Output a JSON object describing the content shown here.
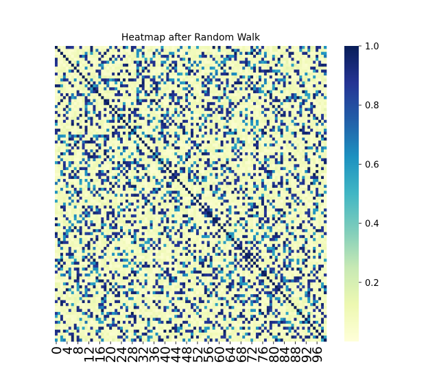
{
  "chart_data": {
    "type": "heatmap",
    "title": "Heatmap after Random Walk",
    "xlabel": "",
    "ylabel": "",
    "size": 100,
    "x_tick_labels": [
      "0",
      "4",
      "8",
      "12",
      "16",
      "20",
      "24",
      "28",
      "32",
      "36",
      "40",
      "44",
      "48",
      "52",
      "56",
      "60",
      "64",
      "68",
      "72",
      "76",
      "80",
      "84",
      "88",
      "92",
      "96"
    ],
    "colorbar": {
      "range": [
        0.0,
        1.0
      ],
      "tick_values": [
        0.2,
        0.4,
        0.6,
        0.8,
        1.0
      ],
      "tick_labels": [
        "0.2",
        "0.4",
        "0.6",
        "0.8",
        "1.0"
      ],
      "colormap": "YlGnBu",
      "colormap_stops": [
        "#ffffd9",
        "#edf8b1",
        "#c7e9b4",
        "#7fcdbb",
        "#41b6c4",
        "#1d91c0",
        "#225ea8",
        "#253494",
        "#081d58"
      ]
    },
    "grid": false,
    "legend": "colorbar-right",
    "values_approximate": "100x100 symmetric matrix with 1.0 on the diagonal; individual cell values are not labeled and are approximated"
  }
}
